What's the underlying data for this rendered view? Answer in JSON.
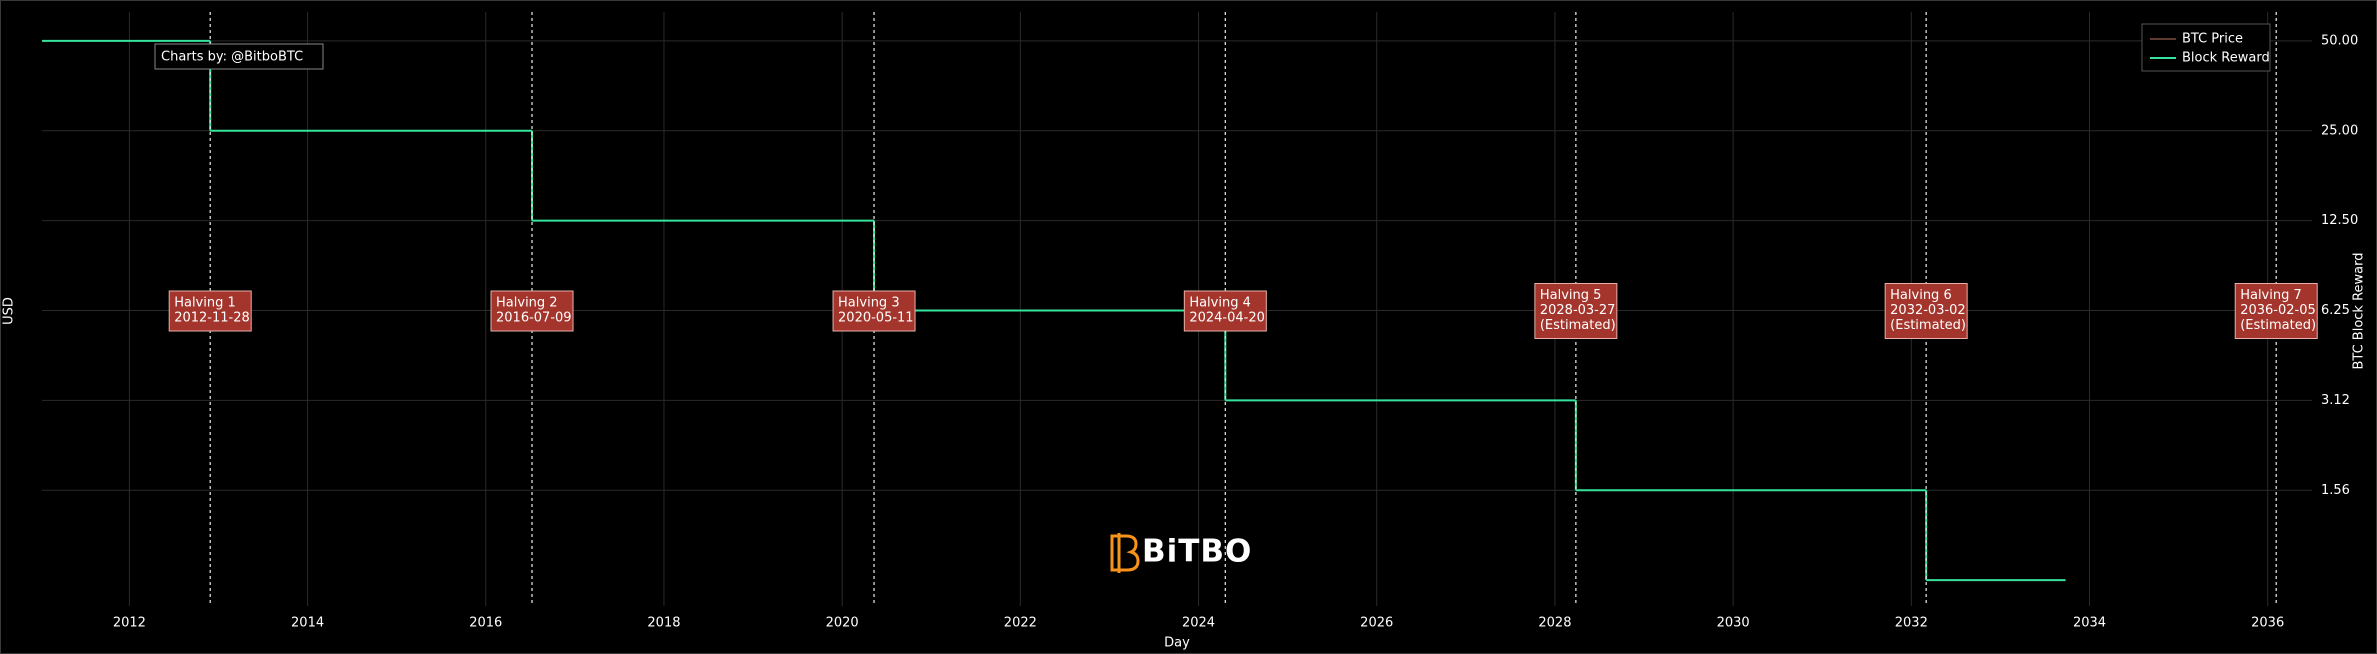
{
  "chart_data": {
    "type": "step",
    "credit": "Charts by: @BitboBTC",
    "watermark": "BiTBO",
    "xlabel": "Day",
    "ylabel": "USD",
    "y2label": "BTC Block Reward",
    "log_y2": true,
    "grid": true,
    "legend": "upper right",
    "x": [
      "2011-01-08",
      "2012-11-28",
      "2016-07-09",
      "2020-05-11",
      "2024-04-20",
      "2028-03-27",
      "2032-03-02",
      "2033-09-25"
    ],
    "xlim": [
      "2011-01-08",
      "2036-07-01"
    ],
    "xticks": [
      2012,
      2014,
      2016,
      2018,
      2020,
      2022,
      2024,
      2026,
      2028,
      2030,
      2032,
      2034,
      2036
    ],
    "y2lim": [
      0.64,
      62.5
    ],
    "y2ticks": [
      {
        "value": 50,
        "label": "50.00"
      },
      {
        "value": 25,
        "label": "25.00"
      },
      {
        "value": 12.5,
        "label": "12.50"
      },
      {
        "value": 6.25,
        "label": "6.25"
      },
      {
        "value": 3.125,
        "label": "3.12"
      },
      {
        "value": 1.5625,
        "label": "1.56"
      }
    ],
    "series": [
      {
        "name": "BTC Price",
        "color": "#5e3b30",
        "axis": "y",
        "values": [
          null,
          null,
          null,
          null,
          null,
          null,
          null,
          null
        ]
      },
      {
        "name": "Block Reward",
        "color": "#36e39c",
        "axis": "y2",
        "values": [
          50,
          25,
          12.5,
          6.25,
          3.125,
          1.5625,
          0.78125,
          0.78125
        ]
      }
    ],
    "annotations": [
      {
        "label": "Halving 1",
        "date": "2012-11-28"
      },
      {
        "label": "Halving 2",
        "date": "2016-07-09"
      },
      {
        "label": "Halving 3",
        "date": "2020-05-11"
      },
      {
        "label": "Halving 4",
        "date": "2024-04-20"
      },
      {
        "label": "Halving 5",
        "date": "2028-03-27",
        "note": "(Estimated)"
      },
      {
        "label": "Halving 6",
        "date": "2032-03-02",
        "note": "(Estimated)"
      },
      {
        "label": "Halving 7",
        "date": "2036-02-05",
        "note": "(Estimated)"
      }
    ]
  }
}
